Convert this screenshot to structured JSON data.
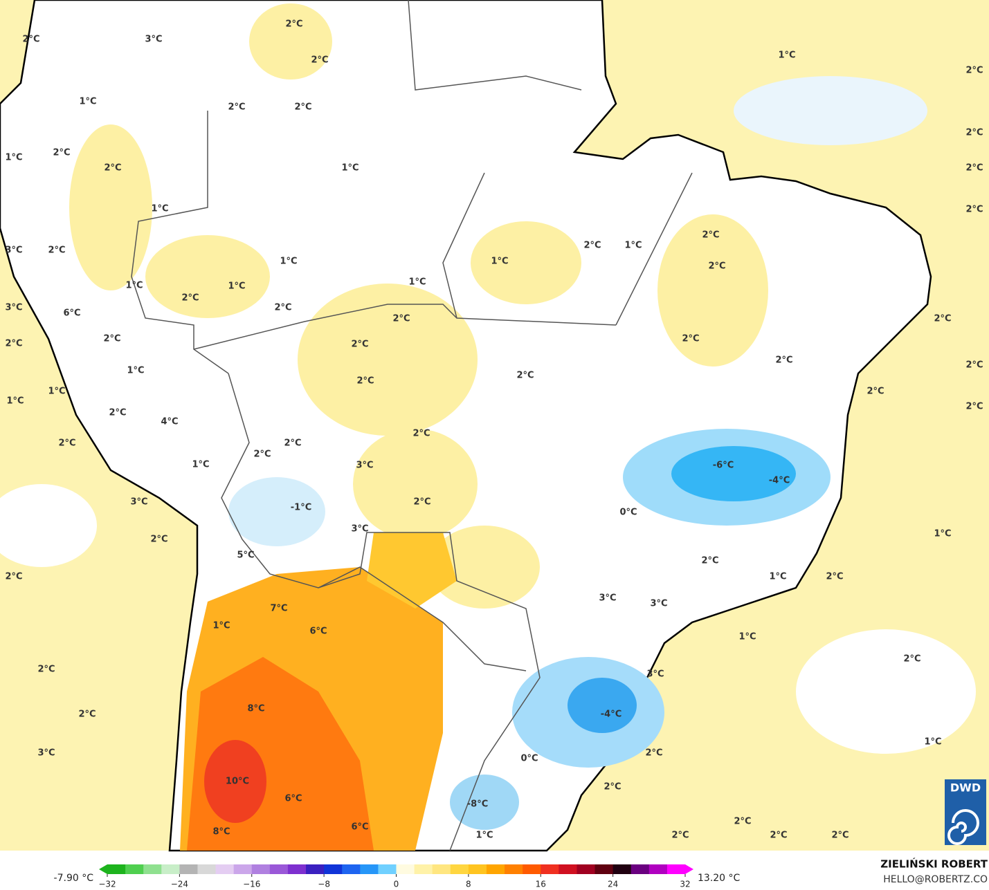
{
  "map": {
    "labels": [
      "2°C",
      "3°C",
      "2°C",
      "2°C",
      "1°C",
      "2°C",
      "1°C",
      "2°C",
      "2°C",
      "2°C",
      "2°C",
      "1°C",
      "2°C",
      "1°C",
      "2°C",
      "2°C",
      "1°C",
      "2°C",
      "2°C",
      "1°C",
      "3°C",
      "2°C",
      "1°C",
      "1°C",
      "2°C",
      "1°C",
      "1°C",
      "1°C",
      "2°C",
      "2°C",
      "3°C",
      "6°C",
      "2°C",
      "2°C",
      "2°C",
      "2°C",
      "2°C",
      "2°C",
      "2°C",
      "2°C",
      "1°C",
      "2°C",
      "2°C",
      "2°C",
      "1°C",
      "1°C",
      "2°C",
      "2°C",
      "4°C",
      "2°C",
      "2°C",
      "2°C",
      "2°C",
      "-6°C",
      "3°C",
      "1°C",
      "-4°C",
      "3°C",
      "2°C",
      "0°C",
      "-1°C",
      "3°C",
      "2°C",
      "1°C",
      "5°C",
      "2°C",
      "2°C",
      "1°C",
      "2°C",
      "3°C",
      "3°C",
      "7°C",
      "1°C",
      "6°C",
      "1°C",
      "3°C",
      "2°C",
      "2°C",
      "8°C",
      "2°C",
      "-4°C",
      "1°C",
      "3°C",
      "2°C",
      "0°C",
      "2°C",
      "10°C",
      "6°C",
      "-8°C",
      "2°C",
      "6°C",
      "8°C",
      "1°C",
      "2°C",
      "2°C",
      "2°C"
    ]
  },
  "colorbar": {
    "min_label": "-7.90 °C",
    "max_label": "13.20 °C",
    "range": [
      -32,
      32
    ],
    "ticks": [
      {
        "value": -32,
        "label": "−32"
      },
      {
        "value": -24,
        "label": "−24"
      },
      {
        "value": -16,
        "label": "−16"
      },
      {
        "value": -8,
        "label": "−8"
      },
      0,
      8,
      16,
      24,
      32
    ],
    "colors": [
      "#1db31d",
      "#4fcf4f",
      "#8fe08f",
      "#c8eec8",
      "#b4b4b4",
      "#d8d8d8",
      "#e4cdf2",
      "#cba6ea",
      "#b080e0",
      "#9a58d8",
      "#7e30cf",
      "#3a20c0",
      "#1034d8",
      "#1e64f0",
      "#2696f8",
      "#70d0ff",
      "#fffbe0",
      "#fff2a8",
      "#ffe680",
      "#ffd640",
      "#ffc420",
      "#ffa500",
      "#ff8000",
      "#ff5a00",
      "#f03020",
      "#d01020",
      "#a00020",
      "#600010",
      "#200010",
      "#6a0080",
      "#b000c0",
      "#ff00ff"
    ]
  },
  "credit": {
    "author": "ZIELIŃSKI ROBERT",
    "email": "HELLO@ROBERTZ.CO",
    "logo": "DWD"
  }
}
